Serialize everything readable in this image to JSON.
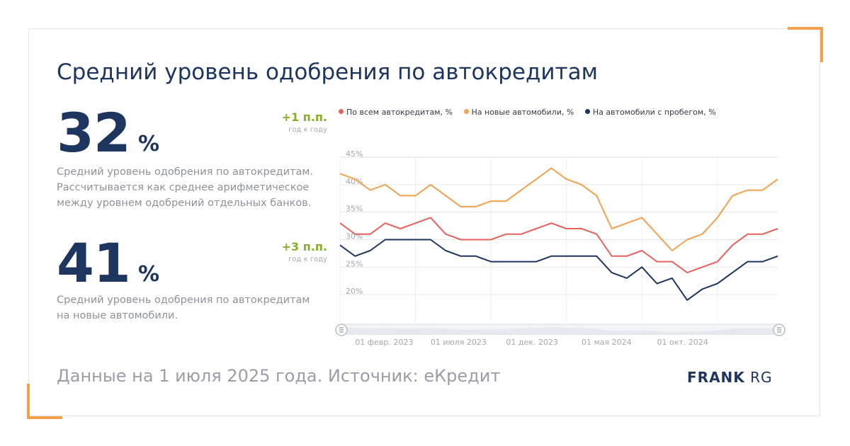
{
  "title": "Средний уровень одобрения по автокредитам",
  "stats": [
    {
      "value": "32",
      "unit": "%",
      "delta": "+1 п.п.",
      "delta_note": "год к году",
      "description": "Средний уровень одобрения по автокредитам. Рассчитывается как среднее арифметическое между уровнем одобрений отдельных банков."
    },
    {
      "value": "41",
      "unit": "%",
      "delta": "+3 п.п.",
      "delta_note": "год к году",
      "description": "Средний уровень одобрения по автокредитам на новые автомобили."
    }
  ],
  "footer": {
    "source": "Данные на 1 июля 2025 года. Источник: eКредит",
    "logo_bold": "FRANK",
    "logo_light": "RG"
  },
  "colors": {
    "all": "#e8615c",
    "new": "#f5a04a",
    "used": "#1e3560",
    "accent": "#f5a04a",
    "delta": "#86b02c"
  },
  "chart_data": {
    "type": "line",
    "x_start": "2023-01",
    "x_end": "2025-06",
    "x_step": "month",
    "ylim": [
      15,
      45
    ],
    "yticks": [
      20,
      25,
      30,
      35,
      40,
      45
    ],
    "ytick_labels": [
      "20%",
      "25%",
      "30%",
      "35%",
      "40%",
      "45%"
    ],
    "xtick_labels": [
      {
        "label": "01 февр. 2023",
        "index": 1
      },
      {
        "label": "01 июля 2023",
        "index": 6
      },
      {
        "label": "01 дек. 2023",
        "index": 11
      },
      {
        "label": "01 мая 2024",
        "index": 16
      },
      {
        "label": "01 окт. 2024",
        "index": 21
      }
    ],
    "legend_position": "top",
    "grid": true,
    "series": [
      {
        "name": "По всем автокредитам, %",
        "color_key": "all",
        "values": [
          33,
          31,
          31,
          33,
          32,
          33,
          34,
          31,
          30,
          30,
          30,
          31,
          31,
          32,
          33,
          32,
          32,
          31,
          27,
          27,
          28,
          26,
          26,
          24,
          25,
          26,
          29,
          31,
          31,
          32
        ]
      },
      {
        "name": "На новые автомобили, %",
        "color_key": "new",
        "values": [
          42,
          41,
          39,
          40,
          38,
          38,
          40,
          38,
          36,
          36,
          37,
          37,
          39,
          41,
          43,
          41,
          40,
          38,
          32,
          33,
          34,
          31,
          28,
          30,
          31,
          34,
          38,
          39,
          39,
          41
        ]
      },
      {
        "name": "На автомобили с пробегом, %",
        "color_key": "used",
        "values": [
          29,
          27,
          28,
          30,
          30,
          30,
          30,
          28,
          27,
          27,
          26,
          26,
          26,
          26,
          27,
          27,
          27,
          27,
          24,
          23,
          25,
          22,
          23,
          19,
          21,
          22,
          24,
          26,
          26,
          27
        ]
      }
    ]
  }
}
